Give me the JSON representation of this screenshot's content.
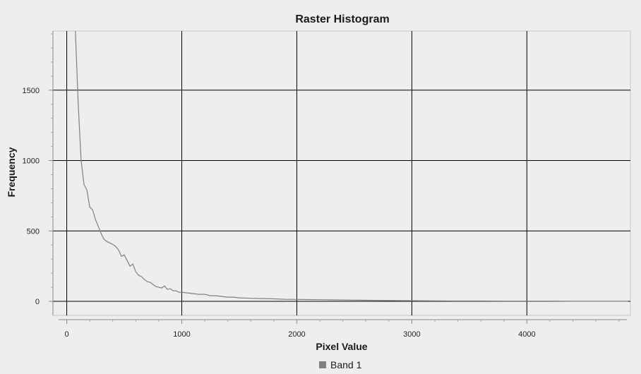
{
  "chart_data": {
    "type": "line",
    "title": "Raster Histogram",
    "xlabel": "Pixel Value",
    "ylabel": "Frequency",
    "xlim": [
      -120,
      4900
    ],
    "ylim": [
      -100,
      1920
    ],
    "x_ticks": [
      {
        "value": 0,
        "label": "0"
      },
      {
        "value": 1000,
        "label": "1000"
      },
      {
        "value": 2000,
        "label": "2000"
      },
      {
        "value": 3000,
        "label": "3000"
      },
      {
        "value": 4000,
        "label": "4000"
      }
    ],
    "y_ticks": [
      {
        "value": 0,
        "label": "0"
      },
      {
        "value": 500,
        "label": "500"
      },
      {
        "value": 1000,
        "label": "1000"
      },
      {
        "value": 1500,
        "label": "1500"
      }
    ],
    "grid": true,
    "legend_position": "bottom",
    "series": [
      {
        "name": "Band 1",
        "color": "#808080",
        "x": [
          75,
          100,
          125,
          150,
          175,
          200,
          225,
          250,
          275,
          300,
          325,
          350,
          375,
          400,
          425,
          450,
          475,
          500,
          525,
          550,
          575,
          600,
          625,
          650,
          675,
          700,
          725,
          750,
          775,
          800,
          825,
          850,
          875,
          900,
          925,
          950,
          975,
          1000,
          1050,
          1100,
          1150,
          1200,
          1250,
          1300,
          1350,
          1400,
          1450,
          1500,
          1600,
          1700,
          1800,
          1900,
          2000,
          2100,
          2200,
          2300,
          2400,
          2500,
          2600,
          2700,
          2800,
          3000,
          3200,
          3400,
          3600,
          3800,
          4000,
          4200,
          4400,
          4600,
          4800,
          4880
        ],
        "values": [
          1920,
          1400,
          1000,
          830,
          790,
          670,
          650,
          580,
          530,
          480,
          440,
          425,
          415,
          405,
          390,
          365,
          320,
          330,
          290,
          250,
          265,
          210,
          185,
          175,
          155,
          140,
          135,
          120,
          105,
          100,
          95,
          110,
          85,
          90,
          75,
          75,
          65,
          65,
          60,
          55,
          50,
          50,
          40,
          40,
          35,
          30,
          30,
          25,
          22,
          20,
          18,
          15,
          14,
          13,
          12,
          11,
          10,
          9,
          8,
          7,
          6,
          5,
          4,
          3,
          3,
          2,
          2,
          2,
          1,
          1,
          1,
          1
        ]
      }
    ]
  }
}
